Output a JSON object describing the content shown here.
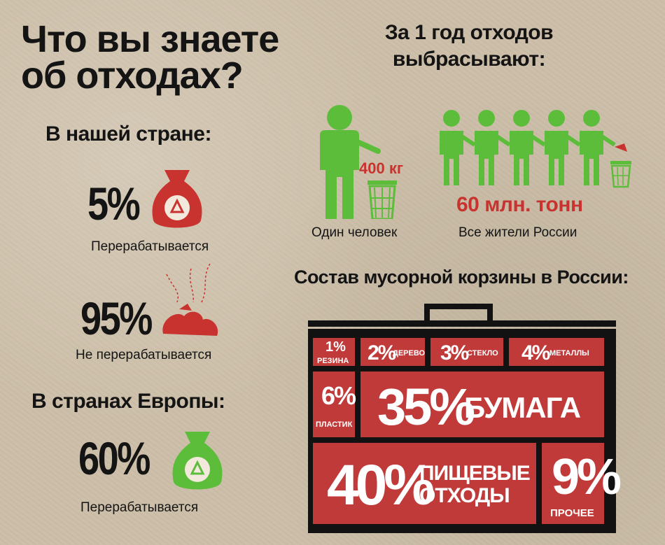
{
  "title": "Что вы знаете\nоб отходах?",
  "country": {
    "heading": "В нашей стране:",
    "recycled": {
      "value": "5%",
      "label": "Перерабатывается"
    },
    "not_recycled": {
      "value": "95%",
      "label": "Не перерабатывается"
    }
  },
  "europe": {
    "heading": "В странах Европы:",
    "recycled": {
      "value": "60%",
      "label": "Перерабатывается"
    }
  },
  "per_year": {
    "heading": "За 1 год отходов\nвыбрасывают:",
    "person": {
      "amount": "400 кг",
      "label": "Один человек"
    },
    "all": {
      "amount": "60 млн. тонн",
      "label": "Все жители России"
    }
  },
  "composition": {
    "heading": "Состав мусорной корзины в России:",
    "items": {
      "rubber": {
        "pct": "1%",
        "label": "РЕЗИНА"
      },
      "wood": {
        "pct": "2%",
        "label": "ДЕРЕВО"
      },
      "glass": {
        "pct": "3%",
        "label": "СТЕКЛО"
      },
      "metal": {
        "pct": "4%",
        "label": "МЕТАЛЛЫ"
      },
      "plastic": {
        "pct": "6%",
        "label": "ПЛАСТИК"
      },
      "paper": {
        "pct": "35%",
        "label": "БУМАГА"
      },
      "food": {
        "pct": "40%",
        "label": "ПИЩЕВЫЕ\nОТХОДЫ"
      },
      "other": {
        "pct": "9%",
        "label": "ПРОЧЕЕ"
      }
    }
  },
  "colors": {
    "red": "#c03a3a",
    "green": "#5cbd3b",
    "text": "#141414"
  }
}
